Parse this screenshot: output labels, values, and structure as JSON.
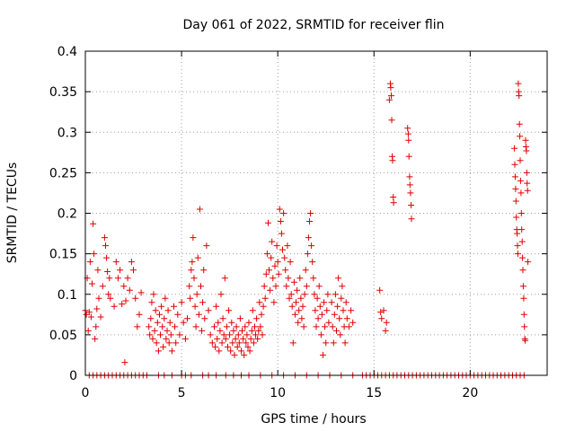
{
  "chart_data": {
    "type": "scatter",
    "title": "Day 061 of 2022, SRMTID for receiver flin",
    "xlabel": "GPS time / hours",
    "ylabel": "SRMTID / TECUs",
    "xlim": [
      0,
      24
    ],
    "ylim": [
      0,
      0.4
    ],
    "xticks": [
      0,
      5,
      10,
      15,
      20
    ],
    "xtick_labels": [
      "0",
      "5",
      "10",
      "15",
      "20"
    ],
    "yticks": [
      0,
      0.05,
      0.1,
      0.15,
      0.2,
      0.25,
      0.3,
      0.35,
      0.4
    ],
    "ytick_labels": [
      "0",
      "0.05",
      "0.1",
      "0.15",
      "0.2",
      "0.25",
      "0.3",
      "0.35",
      "0.4"
    ],
    "grid": true,
    "marker": "+",
    "series": [
      {
        "name": "SRMTID",
        "color": "#e00000",
        "points": [
          [
            0.0,
            0.08
          ],
          [
            0.05,
            0.075
          ],
          [
            0.1,
            0.12
          ],
          [
            0.15,
            0.055
          ],
          [
            0.2,
            0.078
          ],
          [
            0.25,
            0.14
          ],
          [
            0.3,
            0.072
          ],
          [
            0.35,
            0.113
          ],
          [
            0.4,
            0.187
          ],
          [
            0.45,
            0.15
          ],
          [
            0.5,
            0.045
          ],
          [
            0.55,
            0.06
          ],
          [
            0.6,
            0.082
          ],
          [
            0.65,
            0.13
          ],
          [
            0.7,
            0.095
          ],
          [
            0.8,
            0.072
          ],
          [
            0.9,
            0.11
          ],
          [
            1.0,
            0.17
          ],
          [
            1.05,
            0.16
          ],
          [
            1.1,
            0.145
          ],
          [
            1.15,
            0.128
          ],
          [
            1.2,
            0.1
          ],
          [
            1.25,
            0.12
          ],
          [
            1.3,
            0.095
          ],
          [
            1.5,
            0.085
          ],
          [
            1.6,
            0.14
          ],
          [
            1.7,
            0.12
          ],
          [
            1.8,
            0.13
          ],
          [
            1.9,
            0.088
          ],
          [
            2.0,
            0.11
          ],
          [
            2.05,
            0.016
          ],
          [
            2.1,
            0.092
          ],
          [
            2.2,
            0.12
          ],
          [
            2.3,
            0.105
          ],
          [
            2.4,
            0.14
          ],
          [
            2.5,
            0.13
          ],
          [
            2.6,
            0.095
          ],
          [
            2.7,
            0.06
          ],
          [
            2.8,
            0.075
          ],
          [
            2.9,
            0.102
          ],
          [
            3.3,
            0.06
          ],
          [
            3.35,
            0.05
          ],
          [
            3.4,
            0.07
          ],
          [
            3.45,
            0.09
          ],
          [
            3.5,
            0.045
          ],
          [
            3.55,
            0.1
          ],
          [
            3.6,
            0.055
          ],
          [
            3.65,
            0.08
          ],
          [
            3.7,
            0.04
          ],
          [
            3.75,
            0.065
          ],
          [
            3.8,
            0.03
          ],
          [
            3.85,
            0.075
          ],
          [
            3.9,
            0.05
          ],
          [
            3.95,
            0.085
          ],
          [
            4.0,
            0.06
          ],
          [
            4.05,
            0.035
          ],
          [
            4.1,
            0.07
          ],
          [
            4.15,
            0.095
          ],
          [
            4.2,
            0.045
          ],
          [
            4.25,
            0.055
          ],
          [
            4.3,
            0.08
          ],
          [
            4.35,
            0.04
          ],
          [
            4.4,
            0.065
          ],
          [
            4.45,
            0.05
          ],
          [
            4.5,
            0.03
          ],
          [
            4.6,
            0.085
          ],
          [
            4.65,
            0.06
          ],
          [
            4.7,
            0.04
          ],
          [
            4.8,
            0.075
          ],
          [
            4.9,
            0.05
          ],
          [
            5.0,
            0.09
          ],
          [
            5.1,
            0.065
          ],
          [
            5.2,
            0.045
          ],
          [
            5.3,
            0.07
          ],
          [
            5.4,
            0.11
          ],
          [
            5.45,
            0.095
          ],
          [
            5.5,
            0.13
          ],
          [
            5.55,
            0.14
          ],
          [
            5.6,
            0.17
          ],
          [
            5.65,
            0.12
          ],
          [
            5.7,
            0.085
          ],
          [
            5.75,
            0.06
          ],
          [
            5.8,
            0.1
          ],
          [
            5.85,
            0.145
          ],
          [
            5.9,
            0.075
          ],
          [
            5.95,
            0.205
          ],
          [
            6.0,
            0.11
          ],
          [
            6.05,
            0.055
          ],
          [
            6.1,
            0.09
          ],
          [
            6.15,
            0.13
          ],
          [
            6.2,
            0.07
          ],
          [
            6.3,
            0.16
          ],
          [
            6.4,
            0.08
          ],
          [
            6.5,
            0.05
          ],
          [
            6.6,
            0.04
          ],
          [
            6.7,
            0.06
          ],
          [
            6.75,
            0.035
          ],
          [
            6.8,
            0.085
          ],
          [
            6.85,
            0.045
          ],
          [
            6.9,
            0.065
          ],
          [
            6.95,
            0.03
          ],
          [
            7.0,
            0.055
          ],
          [
            7.05,
            0.1
          ],
          [
            7.1,
            0.04
          ],
          [
            7.15,
            0.07
          ],
          [
            7.2,
            0.05
          ],
          [
            7.25,
            0.12
          ],
          [
            7.3,
            0.045
          ],
          [
            7.35,
            0.06
          ],
          [
            7.4,
            0.035
          ],
          [
            7.45,
            0.08
          ],
          [
            7.5,
            0.05
          ],
          [
            7.55,
            0.03
          ],
          [
            7.6,
            0.065
          ],
          [
            7.65,
            0.04
          ],
          [
            7.7,
            0.055
          ],
          [
            7.75,
            0.025
          ],
          [
            7.8,
            0.045
          ],
          [
            7.85,
            0.06
          ],
          [
            7.9,
            0.035
          ],
          [
            7.95,
            0.05
          ],
          [
            8.0,
            0.04
          ],
          [
            8.05,
            0.07
          ],
          [
            8.1,
            0.03
          ],
          [
            8.15,
            0.055
          ],
          [
            8.2,
            0.045
          ],
          [
            8.25,
            0.025
          ],
          [
            8.3,
            0.06
          ],
          [
            8.35,
            0.04
          ],
          [
            8.4,
            0.05
          ],
          [
            8.45,
            0.035
          ],
          [
            8.5,
            0.065
          ],
          [
            8.55,
            0.03
          ],
          [
            8.6,
            0.045
          ],
          [
            8.65,
            0.055
          ],
          [
            8.7,
            0.08
          ],
          [
            8.75,
            0.04
          ],
          [
            8.8,
            0.06
          ],
          [
            8.85,
            0.05
          ],
          [
            8.9,
            0.07
          ],
          [
            8.95,
            0.045
          ],
          [
            9.0,
            0.055
          ],
          [
            9.05,
            0.09
          ],
          [
            9.1,
            0.06
          ],
          [
            9.15,
            0.075
          ],
          [
            9.2,
            0.05
          ],
          [
            9.25,
            0.085
          ],
          [
            9.3,
            0.11
          ],
          [
            9.35,
            0.095
          ],
          [
            9.4,
            0.125
          ],
          [
            9.45,
            0.15
          ],
          [
            9.5,
            0.188
          ],
          [
            9.55,
            0.13
          ],
          [
            9.6,
            0.105
          ],
          [
            9.65,
            0.145
          ],
          [
            9.7,
            0.165
          ],
          [
            9.75,
            0.12
          ],
          [
            9.8,
            0.09
          ],
          [
            9.85,
            0.135
          ],
          [
            9.9,
            0.11
          ],
          [
            9.95,
            0.16
          ],
          [
            10.0,
            0.14
          ],
          [
            10.05,
            0.125
          ],
          [
            10.1,
            0.205
          ],
          [
            10.15,
            0.19
          ],
          [
            10.2,
            0.175
          ],
          [
            10.25,
            0.155
          ],
          [
            10.3,
            0.2
          ],
          [
            10.35,
            0.145
          ],
          [
            10.4,
            0.13
          ],
          [
            10.45,
            0.11
          ],
          [
            10.5,
            0.16
          ],
          [
            10.55,
            0.12
          ],
          [
            10.6,
            0.095
          ],
          [
            10.65,
            0.14
          ],
          [
            10.7,
            0.1
          ],
          [
            10.75,
            0.085
          ],
          [
            10.8,
            0.04
          ],
          [
            10.85,
            0.115
          ],
          [
            10.9,
            0.075
          ],
          [
            10.95,
            0.09
          ],
          [
            11.0,
            0.105
          ],
          [
            11.05,
            0.065
          ],
          [
            11.1,
            0.08
          ],
          [
            11.15,
            0.12
          ],
          [
            11.2,
            0.095
          ],
          [
            11.25,
            0.07
          ],
          [
            11.3,
            0.085
          ],
          [
            11.35,
            0.06
          ],
          [
            11.4,
            0.1
          ],
          [
            11.45,
            0.13
          ],
          [
            11.5,
            0.11
          ],
          [
            11.55,
            0.15
          ],
          [
            11.6,
            0.17
          ],
          [
            11.65,
            0.19
          ],
          [
            11.7,
            0.2
          ],
          [
            11.75,
            0.16
          ],
          [
            11.8,
            0.14
          ],
          [
            11.85,
            0.12
          ],
          [
            11.9,
            0.1
          ],
          [
            11.95,
            0.08
          ],
          [
            12.0,
            0.06
          ],
          [
            12.05,
            0.095
          ],
          [
            12.1,
            0.07
          ],
          [
            12.15,
            0.11
          ],
          [
            12.2,
            0.085
          ],
          [
            12.25,
            0.05
          ],
          [
            12.3,
            0.075
          ],
          [
            12.35,
            0.025
          ],
          [
            12.4,
            0.09
          ],
          [
            12.45,
            0.06
          ],
          [
            12.5,
            0.04
          ],
          [
            12.55,
            0.08
          ],
          [
            12.6,
            0.1
          ],
          [
            12.65,
            0.065
          ],
          [
            12.8,
            0.09
          ],
          [
            12.85,
            0.06
          ],
          [
            12.9,
            0.04
          ],
          [
            12.95,
            0.075
          ],
          [
            13.0,
            0.1
          ],
          [
            13.05,
            0.055
          ],
          [
            13.1,
            0.085
          ],
          [
            13.15,
            0.12
          ],
          [
            13.2,
            0.07
          ],
          [
            13.25,
            0.05
          ],
          [
            13.3,
            0.095
          ],
          [
            13.35,
            0.11
          ],
          [
            13.4,
            0.08
          ],
          [
            13.45,
            0.06
          ],
          [
            13.5,
            0.04
          ],
          [
            13.55,
            0.09
          ],
          [
            13.6,
            0.07
          ],
          [
            13.7,
            0.06
          ],
          [
            13.8,
            0.08
          ],
          [
            13.9,
            0.065
          ],
          [
            15.3,
            0.105
          ],
          [
            15.35,
            0.078
          ],
          [
            15.4,
            0.07
          ],
          [
            15.5,
            0.08
          ],
          [
            15.6,
            0.055
          ],
          [
            15.65,
            0.065
          ],
          [
            15.8,
            0.34
          ],
          [
            15.85,
            0.36
          ],
          [
            15.87,
            0.355
          ],
          [
            15.9,
            0.345
          ],
          [
            15.92,
            0.315
          ],
          [
            15.95,
            0.27
          ],
          [
            15.97,
            0.265
          ],
          [
            16.0,
            0.22
          ],
          [
            16.02,
            0.213
          ],
          [
            16.75,
            0.305
          ],
          [
            16.78,
            0.298
          ],
          [
            16.8,
            0.29
          ],
          [
            16.82,
            0.27
          ],
          [
            16.85,
            0.245
          ],
          [
            16.87,
            0.235
          ],
          [
            16.9,
            0.225
          ],
          [
            16.93,
            0.21
          ],
          [
            16.95,
            0.193
          ],
          [
            22.3,
            0.28
          ],
          [
            22.32,
            0.26
          ],
          [
            22.34,
            0.245
          ],
          [
            22.36,
            0.23
          ],
          [
            22.38,
            0.215
          ],
          [
            22.4,
            0.195
          ],
          [
            22.42,
            0.18
          ],
          [
            22.44,
            0.175
          ],
          [
            22.46,
            0.16
          ],
          [
            22.48,
            0.15
          ],
          [
            22.5,
            0.36
          ],
          [
            22.52,
            0.35
          ],
          [
            22.54,
            0.345
          ],
          [
            22.56,
            0.31
          ],
          [
            22.58,
            0.295
          ],
          [
            22.6,
            0.265
          ],
          [
            22.62,
            0.24
          ],
          [
            22.64,
            0.225
          ],
          [
            22.66,
            0.2
          ],
          [
            22.68,
            0.18
          ],
          [
            22.7,
            0.165
          ],
          [
            22.72,
            0.145
          ],
          [
            22.74,
            0.13
          ],
          [
            22.76,
            0.11
          ],
          [
            22.78,
            0.095
          ],
          [
            22.8,
            0.075
          ],
          [
            22.82,
            0.06
          ],
          [
            22.84,
            0.045
          ],
          [
            22.86,
            0.043
          ],
          [
            22.88,
            0.29
          ],
          [
            22.9,
            0.282
          ],
          [
            22.92,
            0.277
          ],
          [
            22.94,
            0.25
          ],
          [
            22.96,
            0.237
          ],
          [
            22.98,
            0.228
          ],
          [
            23.0,
            0.14
          ]
        ],
        "zero_points_x": [
          0.2,
          0.4,
          0.6,
          0.8,
          1.0,
          1.2,
          1.4,
          1.6,
          1.8,
          2.0,
          2.2,
          2.4,
          2.6,
          2.8,
          3.0,
          3.2,
          3.8,
          4.1,
          4.5,
          5.0,
          5.2,
          5.5,
          6.1,
          6.4,
          6.8,
          7.3,
          7.7,
          8.1,
          8.5,
          9.1,
          9.7,
          10.3,
          10.9,
          11.5,
          12.1,
          12.7,
          13.3,
          13.9,
          14.4,
          14.6,
          14.8,
          15.0,
          15.2,
          15.4,
          15.6,
          15.8,
          16.0,
          16.2,
          16.4,
          16.6,
          16.8,
          17.0,
          17.2,
          17.4,
          17.6,
          17.8,
          18.0,
          18.2,
          18.4,
          18.6,
          18.8,
          19.0,
          19.2,
          19.4,
          19.6,
          19.8,
          20.0,
          20.2,
          20.4,
          20.6,
          20.8,
          21.0,
          21.2,
          21.4,
          21.6,
          21.8,
          22.0,
          22.2,
          22.4,
          22.6,
          22.8
        ]
      }
    ]
  }
}
